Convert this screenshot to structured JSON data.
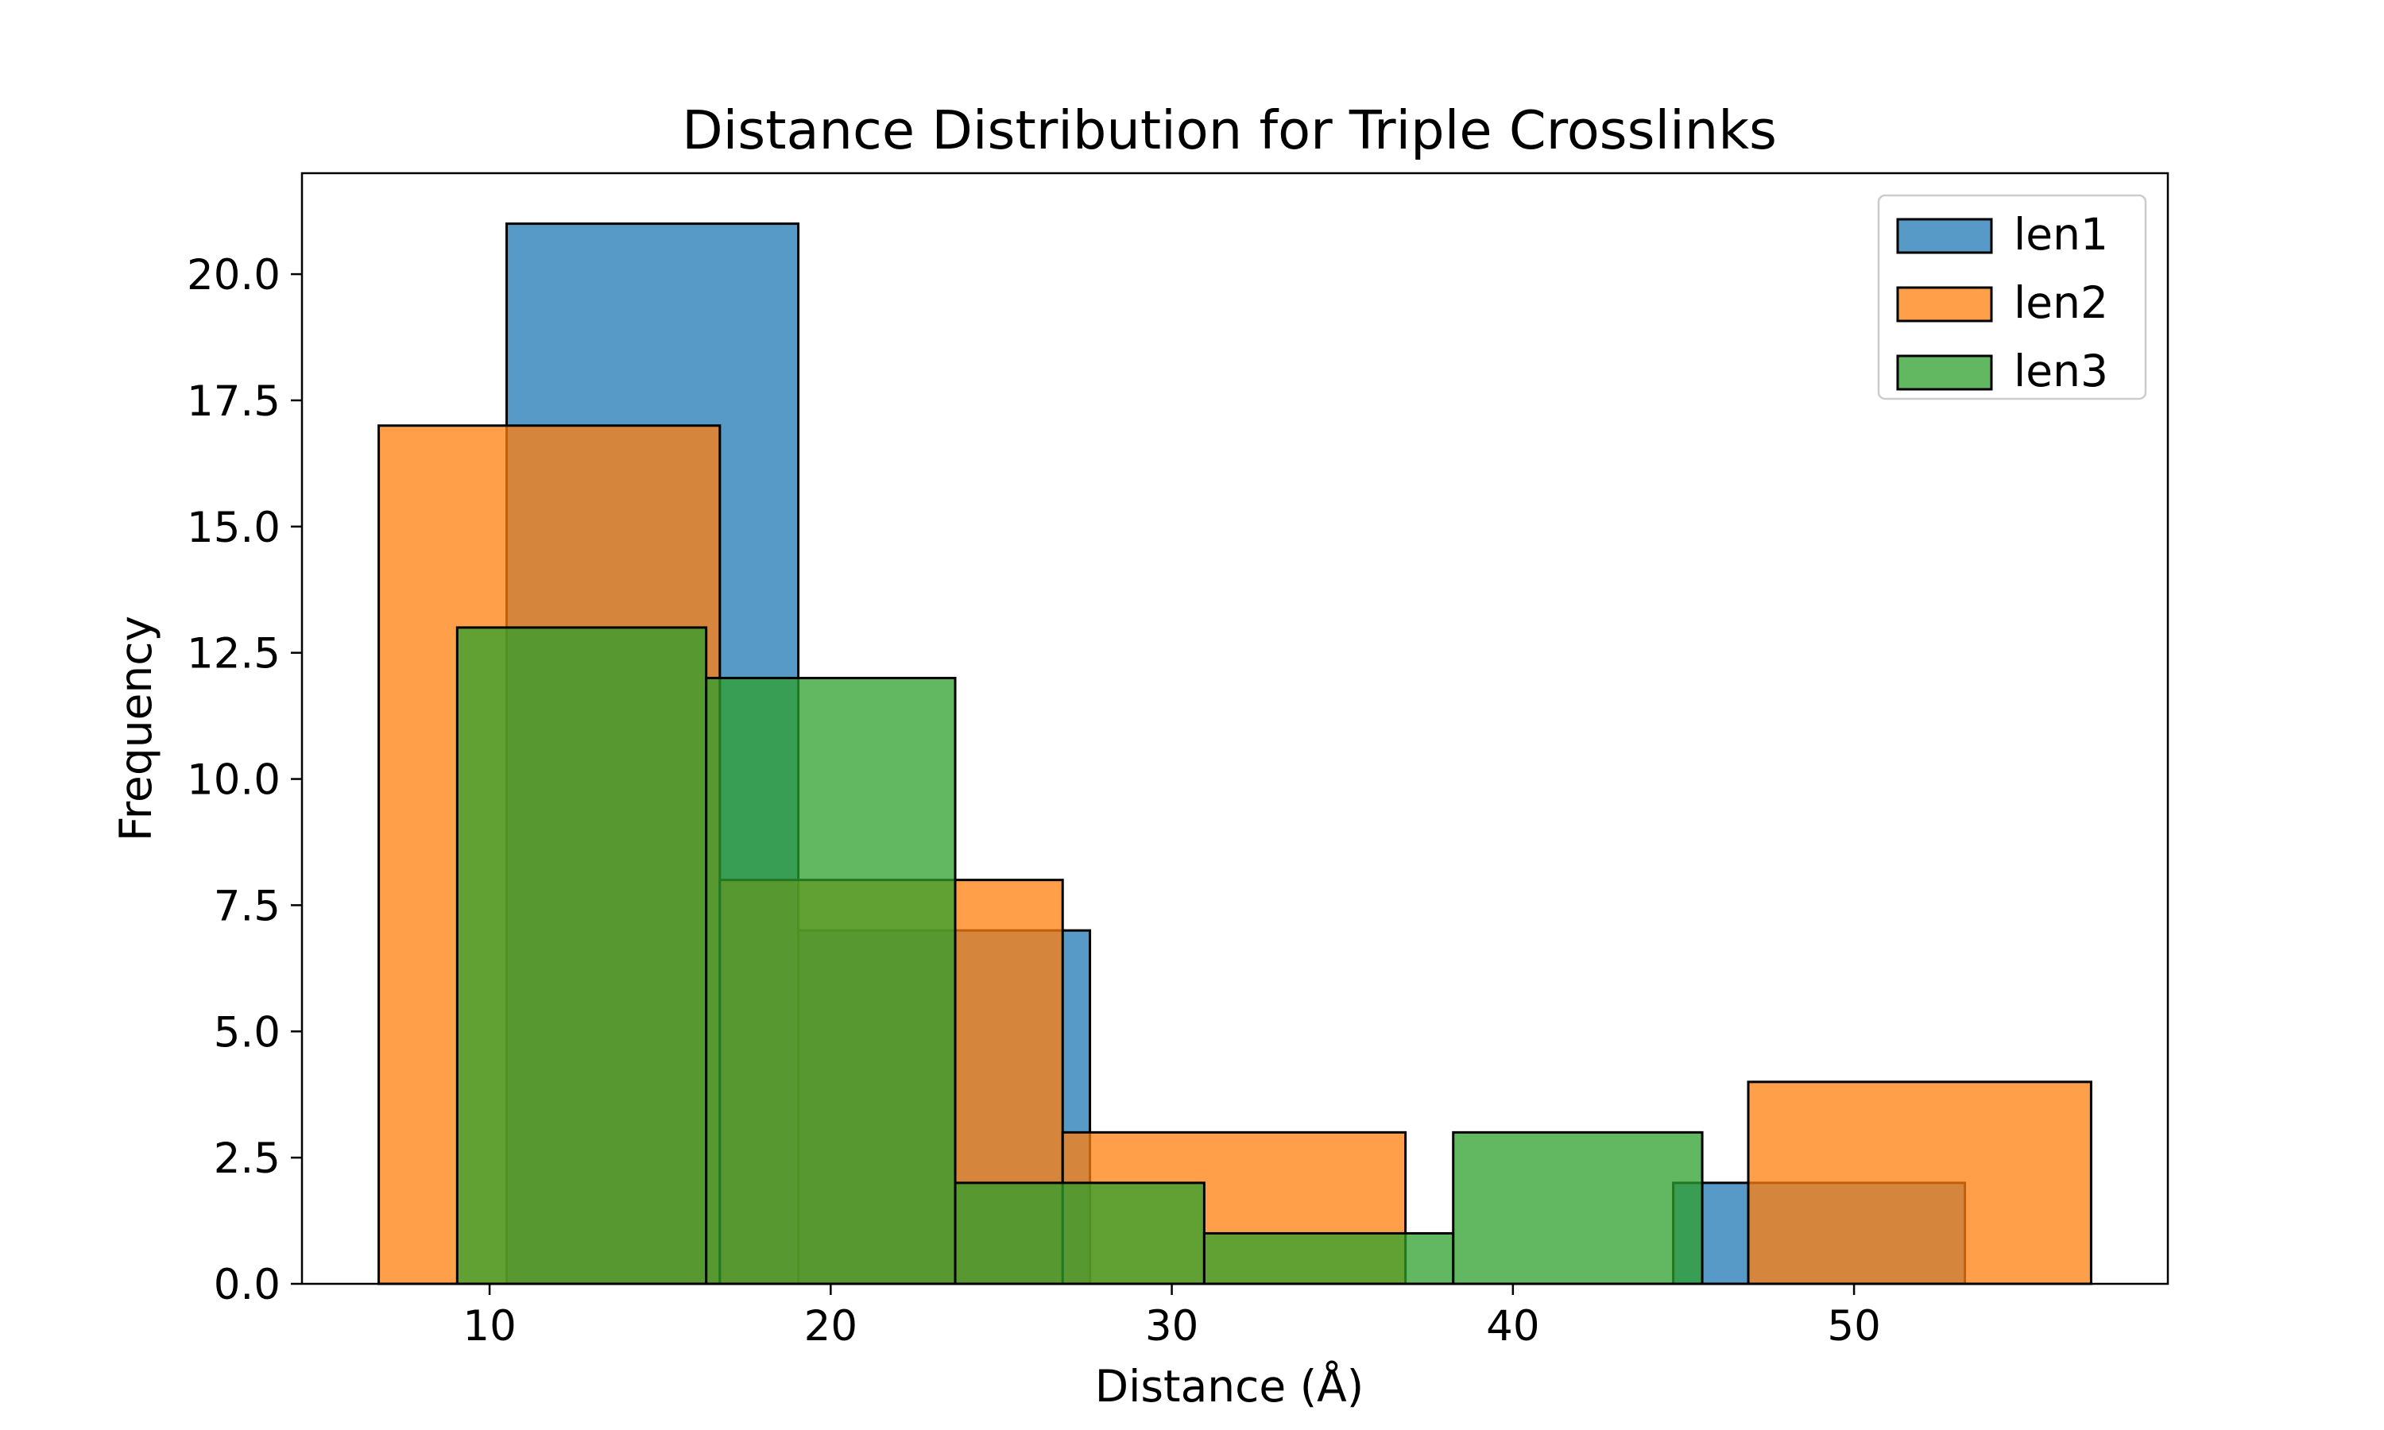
{
  "chart_data": {
    "type": "histogram",
    "title": "Distance Distribution for Triple Crosslinks",
    "xlabel": "Distance (Å)",
    "ylabel": "Frequency",
    "xlim": [
      4.5,
      59.2
    ],
    "ylim": [
      0,
      22
    ],
    "xticks": [
      10,
      20,
      30,
      40,
      50
    ],
    "yticks": [
      0.0,
      2.5,
      5.0,
      7.5,
      10.0,
      12.5,
      15.0,
      17.5,
      20.0
    ],
    "legend_position": "top-right",
    "grid": false,
    "bar_alpha": 0.75,
    "series": [
      {
        "name": "len1",
        "color": "#1f77b4",
        "bins": [
          {
            "x0": 10.5,
            "x1": 19.05,
            "count": 21
          },
          {
            "x0": 19.05,
            "x1": 27.6,
            "count": 7
          },
          {
            "x0": 44.7,
            "x1": 53.25,
            "count": 2
          }
        ]
      },
      {
        "name": "len2",
        "color": "#ff7f0e",
        "bins": [
          {
            "x0": 6.75,
            "x1": 16.75,
            "count": 17
          },
          {
            "x0": 16.75,
            "x1": 26.8,
            "count": 8
          },
          {
            "x0": 26.8,
            "x1": 36.85,
            "count": 3
          },
          {
            "x0": 36.85,
            "x1": 46.9,
            "count": 0
          },
          {
            "x0": 46.9,
            "x1": 56.95,
            "count": 4
          }
        ]
      },
      {
        "name": "len3",
        "color": "#2ca02c",
        "bins": [
          {
            "x0": 9.05,
            "x1": 16.35,
            "count": 13
          },
          {
            "x0": 16.35,
            "x1": 23.65,
            "count": 12
          },
          {
            "x0": 23.65,
            "x1": 30.95,
            "count": 2
          },
          {
            "x0": 30.95,
            "x1": 38.25,
            "count": 1
          },
          {
            "x0": 38.25,
            "x1": 45.55,
            "count": 3
          }
        ]
      }
    ]
  }
}
